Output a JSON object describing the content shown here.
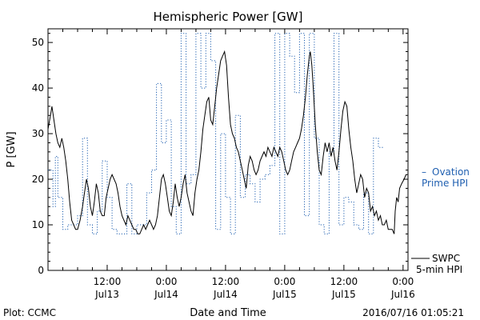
{
  "chart_data": {
    "type": "line",
    "title": "Hemispheric Power [GW]",
    "xlabel": "Date and Time",
    "ylabel": "P [GW]",
    "ylim": [
      0,
      53
    ],
    "xlim": [
      0,
      70
    ],
    "x_unit": "hours after the start of the plotted interval",
    "yticks": [
      0,
      10,
      20,
      30,
      40,
      50
    ],
    "xticks": [
      {
        "x": 12,
        "line1": "12:00",
        "line2": "Jul13"
      },
      {
        "x": 24,
        "line1": "0:00",
        "line2": "Jul14"
      },
      {
        "x": 36,
        "line1": "12:00",
        "line2": "Jul14"
      },
      {
        "x": 48,
        "line1": "0:00",
        "line2": "Jul15"
      },
      {
        "x": 60,
        "line1": "12:00",
        "line2": "Jul15"
      },
      {
        "x": 72,
        "line1": "0:00",
        "line2": "Jul16"
      }
    ],
    "grid": false,
    "series": [
      {
        "name": "SWPC 5-min HPI",
        "color": "#000000",
        "style": "solid",
        "label_line1": "SWPC",
        "label_line2": "5-min HPI",
        "points": [
          [
            0,
            31
          ],
          [
            0.5,
            34
          ],
          [
            0.8,
            36
          ],
          [
            1.2,
            33
          ],
          [
            1.6,
            30
          ],
          [
            2,
            28
          ],
          [
            2.4,
            27
          ],
          [
            2.8,
            29
          ],
          [
            3.2,
            27
          ],
          [
            3.6,
            24
          ],
          [
            4,
            20
          ],
          [
            4.4,
            15
          ],
          [
            4.8,
            11
          ],
          [
            5.2,
            10
          ],
          [
            5.6,
            9
          ],
          [
            6,
            9
          ],
          [
            6.5,
            11
          ],
          [
            7,
            14
          ],
          [
            7.4,
            17
          ],
          [
            7.8,
            20
          ],
          [
            8.2,
            18
          ],
          [
            8.6,
            14
          ],
          [
            9,
            12
          ],
          [
            9.4,
            15
          ],
          [
            9.8,
            19
          ],
          [
            10.2,
            17
          ],
          [
            10.6,
            13
          ],
          [
            11,
            12
          ],
          [
            11.4,
            12
          ],
          [
            11.8,
            16
          ],
          [
            12.2,
            18
          ],
          [
            12.6,
            20
          ],
          [
            13,
            21
          ],
          [
            13.4,
            20
          ],
          [
            13.8,
            19
          ],
          [
            14.2,
            17
          ],
          [
            14.6,
            14
          ],
          [
            15,
            12
          ],
          [
            15.4,
            11
          ],
          [
            15.8,
            10
          ],
          [
            16.2,
            12
          ],
          [
            16.6,
            11
          ],
          [
            17,
            10
          ],
          [
            17.4,
            9
          ],
          [
            17.8,
            9
          ],
          [
            18.2,
            8
          ],
          [
            18.6,
            8
          ],
          [
            19,
            9
          ],
          [
            19.4,
            10
          ],
          [
            19.8,
            9
          ],
          [
            20.2,
            10
          ],
          [
            20.6,
            11
          ],
          [
            21,
            10
          ],
          [
            21.4,
            9
          ],
          [
            21.8,
            10
          ],
          [
            22.2,
            12
          ],
          [
            22.6,
            16
          ],
          [
            23,
            20
          ],
          [
            23.4,
            21
          ],
          [
            23.8,
            19
          ],
          [
            24.2,
            16
          ],
          [
            24.6,
            13
          ],
          [
            25,
            12
          ],
          [
            25.4,
            15
          ],
          [
            25.8,
            19
          ],
          [
            26.2,
            16
          ],
          [
            26.6,
            14
          ],
          [
            27,
            16
          ],
          [
            27.4,
            19
          ],
          [
            27.8,
            21
          ],
          [
            28.2,
            17
          ],
          [
            28.6,
            15
          ],
          [
            29,
            13
          ],
          [
            29.4,
            12
          ],
          [
            29.8,
            17
          ],
          [
            30.2,
            20
          ],
          [
            30.6,
            22
          ],
          [
            31,
            26
          ],
          [
            31.4,
            31
          ],
          [
            31.8,
            34
          ],
          [
            32.2,
            37
          ],
          [
            32.6,
            38
          ],
          [
            33,
            33
          ],
          [
            33.4,
            32
          ],
          [
            33.8,
            36
          ],
          [
            34.2,
            40
          ],
          [
            34.6,
            43
          ],
          [
            35,
            46
          ],
          [
            35.4,
            47
          ],
          [
            35.8,
            48
          ],
          [
            36.2,
            45
          ],
          [
            36.6,
            38
          ],
          [
            37,
            32
          ],
          [
            37.4,
            30
          ],
          [
            37.8,
            29
          ],
          [
            38.2,
            27
          ],
          [
            38.6,
            26
          ],
          [
            39,
            24
          ],
          [
            39.4,
            22
          ],
          [
            39.8,
            20
          ],
          [
            40.2,
            18
          ],
          [
            40.6,
            23
          ],
          [
            41,
            25
          ],
          [
            41.4,
            24
          ],
          [
            41.8,
            22
          ],
          [
            42.2,
            21
          ],
          [
            42.6,
            22
          ],
          [
            43,
            24
          ],
          [
            43.4,
            25
          ],
          [
            43.8,
            26
          ],
          [
            44.2,
            25
          ],
          [
            44.6,
            27
          ],
          [
            45,
            26
          ],
          [
            45.4,
            25
          ],
          [
            45.8,
            27
          ],
          [
            46.2,
            26
          ],
          [
            46.6,
            25
          ],
          [
            47,
            27
          ],
          [
            47.4,
            26
          ],
          [
            47.8,
            24
          ],
          [
            48.2,
            22
          ],
          [
            48.6,
            21
          ],
          [
            49,
            22
          ],
          [
            49.4,
            24
          ],
          [
            49.8,
            26
          ],
          [
            50.2,
            27
          ],
          [
            50.6,
            28
          ],
          [
            51,
            29
          ],
          [
            51.4,
            31
          ],
          [
            51.8,
            34
          ],
          [
            52.2,
            38
          ],
          [
            52.6,
            43
          ],
          [
            53,
            47
          ],
          [
            53.2,
            48
          ],
          [
            53.5,
            45
          ],
          [
            53.8,
            40
          ],
          [
            54.2,
            32
          ],
          [
            54.6,
            26
          ],
          [
            55,
            22
          ],
          [
            55.4,
            21
          ],
          [
            55.8,
            25
          ],
          [
            56.2,
            28
          ],
          [
            56.6,
            26
          ],
          [
            57,
            28
          ],
          [
            57.4,
            25
          ],
          [
            57.8,
            27
          ],
          [
            58.2,
            24
          ],
          [
            58.6,
            22
          ],
          [
            59,
            26
          ],
          [
            59.4,
            31
          ],
          [
            59.8,
            35
          ],
          [
            60.2,
            37
          ],
          [
            60.6,
            36
          ],
          [
            61,
            31
          ],
          [
            61.4,
            27
          ],
          [
            61.8,
            24
          ],
          [
            62.2,
            20
          ],
          [
            62.6,
            17
          ],
          [
            63,
            19
          ],
          [
            63.4,
            21
          ],
          [
            63.8,
            20
          ],
          [
            64.2,
            16
          ],
          [
            64.6,
            18
          ],
          [
            65,
            17
          ],
          [
            65.4,
            13
          ],
          [
            65.8,
            14
          ],
          [
            66.2,
            12
          ],
          [
            66.6,
            13
          ],
          [
            67,
            11
          ],
          [
            67.4,
            12
          ],
          [
            67.8,
            10
          ],
          [
            68.2,
            10
          ],
          [
            68.6,
            11
          ],
          [
            69,
            9
          ],
          [
            69.4,
            9
          ],
          [
            69.8,
            9
          ],
          [
            70.2,
            8
          ],
          [
            70.4,
            13
          ],
          [
            70.7,
            16
          ],
          [
            71,
            15
          ],
          [
            71.3,
            18
          ],
          [
            71.7,
            19
          ],
          [
            72.2,
            20
          ],
          [
            72.6,
            21
          ],
          [
            73,
            21
          ]
        ]
      },
      {
        "name": "Ovation Prime HPI",
        "color": "#1f5fb0",
        "style": "dotted-step",
        "label_line1": "Ovation",
        "label_line2": "Prime HPI",
        "steps": [
          [
            0,
            22
          ],
          [
            1,
            14
          ],
          [
            1.5,
            25
          ],
          [
            2,
            16
          ],
          [
            3,
            9
          ],
          [
            4,
            10
          ],
          [
            6,
            12
          ],
          [
            7,
            29
          ],
          [
            8,
            10
          ],
          [
            9,
            8
          ],
          [
            10,
            13
          ],
          [
            11,
            24
          ],
          [
            12,
            16
          ],
          [
            13,
            9
          ],
          [
            14,
            8
          ],
          [
            16,
            19
          ],
          [
            17,
            8
          ],
          [
            18,
            10
          ],
          [
            20,
            17
          ],
          [
            21,
            22
          ],
          [
            22,
            41
          ],
          [
            23,
            28
          ],
          [
            24,
            33
          ],
          [
            25,
            14
          ],
          [
            26,
            8
          ],
          [
            27,
            52
          ],
          [
            28,
            19
          ],
          [
            29,
            21
          ],
          [
            30,
            52
          ],
          [
            31,
            40
          ],
          [
            32,
            52
          ],
          [
            33,
            46
          ],
          [
            34,
            9
          ],
          [
            35,
            30
          ],
          [
            36,
            16
          ],
          [
            37,
            8
          ],
          [
            38,
            34
          ],
          [
            39,
            16
          ],
          [
            40,
            21
          ],
          [
            41,
            19
          ],
          [
            42,
            15
          ],
          [
            43,
            20
          ],
          [
            44,
            21
          ],
          [
            45,
            23
          ],
          [
            46,
            52
          ],
          [
            47,
            8
          ],
          [
            48,
            52
          ],
          [
            49,
            47
          ],
          [
            50,
            39
          ],
          [
            51,
            52
          ],
          [
            52,
            12
          ],
          [
            53,
            52
          ],
          [
            54,
            29
          ],
          [
            55,
            10
          ],
          [
            56,
            8
          ],
          [
            57,
            26
          ],
          [
            58,
            52
          ],
          [
            59,
            10
          ],
          [
            60,
            16
          ],
          [
            61,
            15
          ],
          [
            62,
            10
          ],
          [
            63,
            9
          ],
          [
            64,
            17
          ],
          [
            65,
            8
          ],
          [
            66,
            29
          ],
          [
            67,
            27
          ]
        ]
      }
    ]
  },
  "footer": {
    "left": "Plot: CCMC",
    "right": "2016/07/16 01:05:21"
  }
}
